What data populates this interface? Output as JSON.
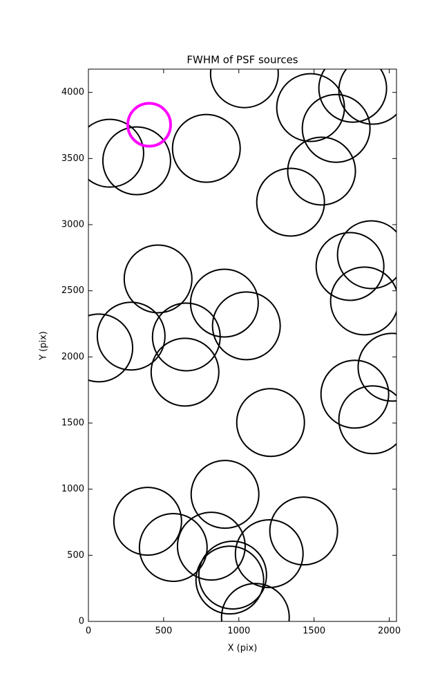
{
  "chart_data": {
    "type": "scatter",
    "title": "FWHM of PSF sources",
    "x_label": "X (pix)",
    "y_label": "Y (pix)",
    "xlim": [
      0,
      2048
    ],
    "ylim": [
      0,
      4176
    ],
    "xticks": [
      0,
      500,
      1000,
      1500,
      2000
    ],
    "yticks": [
      0,
      500,
      1000,
      1500,
      2000,
      2500,
      3000,
      3500,
      4000
    ],
    "grid": false,
    "series": [
      {
        "color": "#000000",
        "marker_size": 49,
        "x": [
          142,
          321,
          784,
          1037,
          1477,
          1757,
          1890,
          1647,
          1550,
          1344,
          1881,
          1739,
          1835,
          463,
          904,
          1050,
          284,
          651,
          69,
          642,
          2018,
          1771,
          1890,
          1211,
          908,
          394,
          564,
          1431,
          817,
          1202,
          959,
          940,
          1110
        ],
        "values": [
          3540,
          3483,
          3577,
          4141,
          3885,
          4031,
          4016,
          3728,
          3405,
          3170,
          2773,
          2684,
          2423,
          2590,
          2407,
          2235,
          2157,
          2151,
          2068,
          1885,
          1922,
          1718,
          1525,
          1504,
          961,
          757,
          559,
          684,
          569,
          512,
          350,
          313,
          31
        ]
      },
      {
        "color": "#ff00ff",
        "marker_size": 31,
        "x": [
          404
        ],
        "values": [
          3755
        ]
      }
    ]
  }
}
